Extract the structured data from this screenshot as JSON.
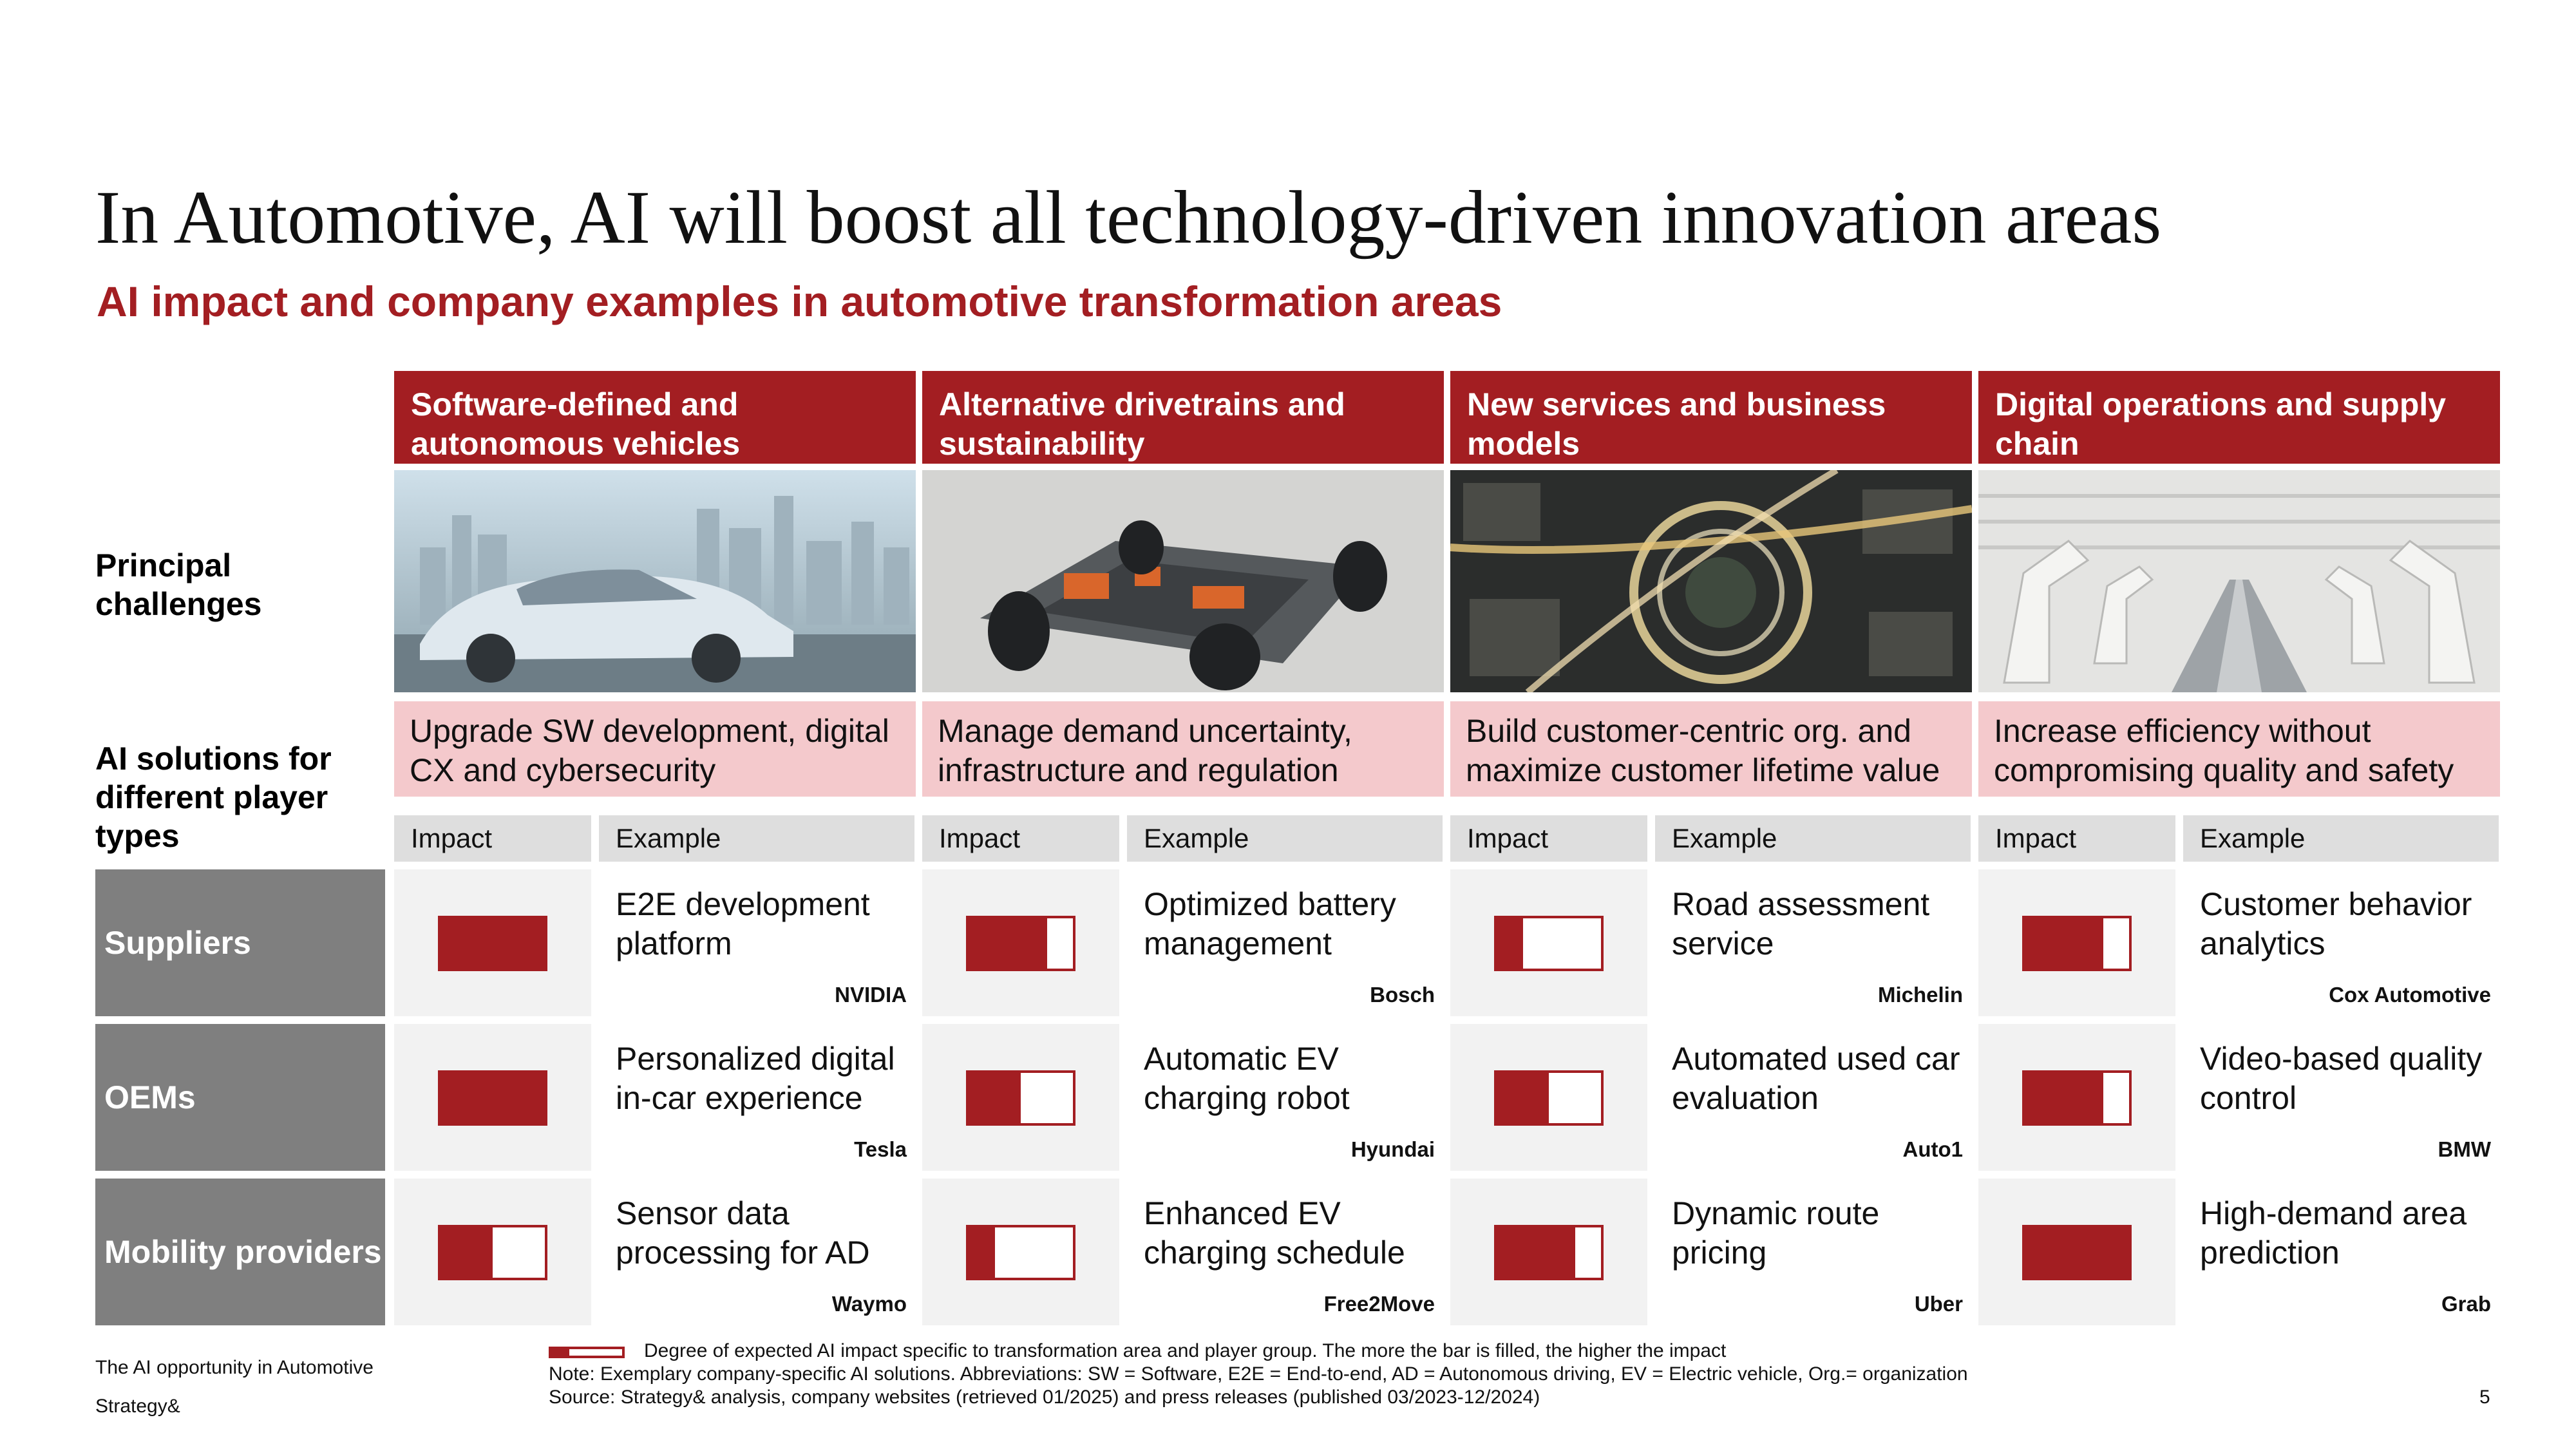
{
  "title": "In Automotive, AI will boost all technology-driven innovation areas",
  "subtitle": "AI impact and company examples in automotive transformation areas",
  "row_labels": {
    "challenges": "Principal challenges",
    "solutions": "AI solutions for different player types"
  },
  "columns": [
    {
      "header": "Software-defined and autonomous vehicles",
      "image": "autonomous-car-city-image",
      "challenge": "Upgrade SW development, digital CX and cybersecurity",
      "impact_label": "Impact",
      "example_label": "Example"
    },
    {
      "header": "Alternative drivetrains and sustainability",
      "image": "ev-chassis-image",
      "challenge": "Manage demand uncertainty, infrastructure and regulation",
      "impact_label": "Impact",
      "example_label": "Example"
    },
    {
      "header": "New services and business models",
      "image": "city-highway-night-image",
      "challenge": "Build customer-centric org. and maximize customer lifetime value",
      "impact_label": "Impact",
      "example_label": "Example"
    },
    {
      "header": "Digital operations and supply chain",
      "image": "robot-factory-image",
      "challenge": "Increase efficiency without compromising quality and safety",
      "impact_label": "Impact",
      "example_label": "Example"
    }
  ],
  "players": [
    {
      "name": "Suppliers",
      "cells": [
        {
          "impact": 1.0,
          "example": "E2E development platform",
          "company": "NVIDIA"
        },
        {
          "impact": 0.75,
          "example": "Optimized battery management",
          "company": "Bosch"
        },
        {
          "impact": 0.25,
          "example": "Road assessment service",
          "company": "Michelin"
        },
        {
          "impact": 0.75,
          "example": "Customer behavior analytics",
          "company": "Cox Automotive"
        }
      ]
    },
    {
      "name": "OEMs",
      "cells": [
        {
          "impact": 1.0,
          "example": "Personalized digital in-car experience",
          "company": "Tesla"
        },
        {
          "impact": 0.5,
          "example": "Automatic EV charging robot",
          "company": "Hyundai"
        },
        {
          "impact": 0.5,
          "example": "Automated used car evaluation",
          "company": "Auto1"
        },
        {
          "impact": 0.75,
          "example": "Video-based quality control",
          "company": "BMW"
        }
      ]
    },
    {
      "name": "Mobility providers",
      "cells": [
        {
          "impact": 0.5,
          "example": "Sensor data processing for AD",
          "company": "Waymo"
        },
        {
          "impact": 0.25,
          "example": "Enhanced EV charging schedule",
          "company": "Free2Move"
        },
        {
          "impact": 0.75,
          "example": "Dynamic route pricing",
          "company": "Uber"
        },
        {
          "impact": 1.0,
          "example": "High-demand area prediction",
          "company": "Grab"
        }
      ]
    }
  ],
  "footer": {
    "doc_title": "The AI opportunity in Automotive",
    "brand": "Strategy&",
    "legend": "Degree of expected AI impact specific to transformation area and player group. The more the bar is filled, the higher the impact",
    "legend_impact": 0.25,
    "note": "Note: Exemplary company-specific AI solutions. Abbreviations: SW = Software, E2E = End-to-end, AD =  Autonomous driving, EV = Electric vehicle, Org.= organization",
    "source": "Source: Strategy& analysis, company websites (retrieved 01/2025) and press releases (published 03/2023-12/2024)",
    "page": "5"
  },
  "colors": {
    "accent": "#a31e22",
    "challenge_bg": "#f4c9cc",
    "player_bg": "#7f7f7f",
    "cell_bg": "#f2f2f2",
    "subhead_bg": "#dedede"
  }
}
